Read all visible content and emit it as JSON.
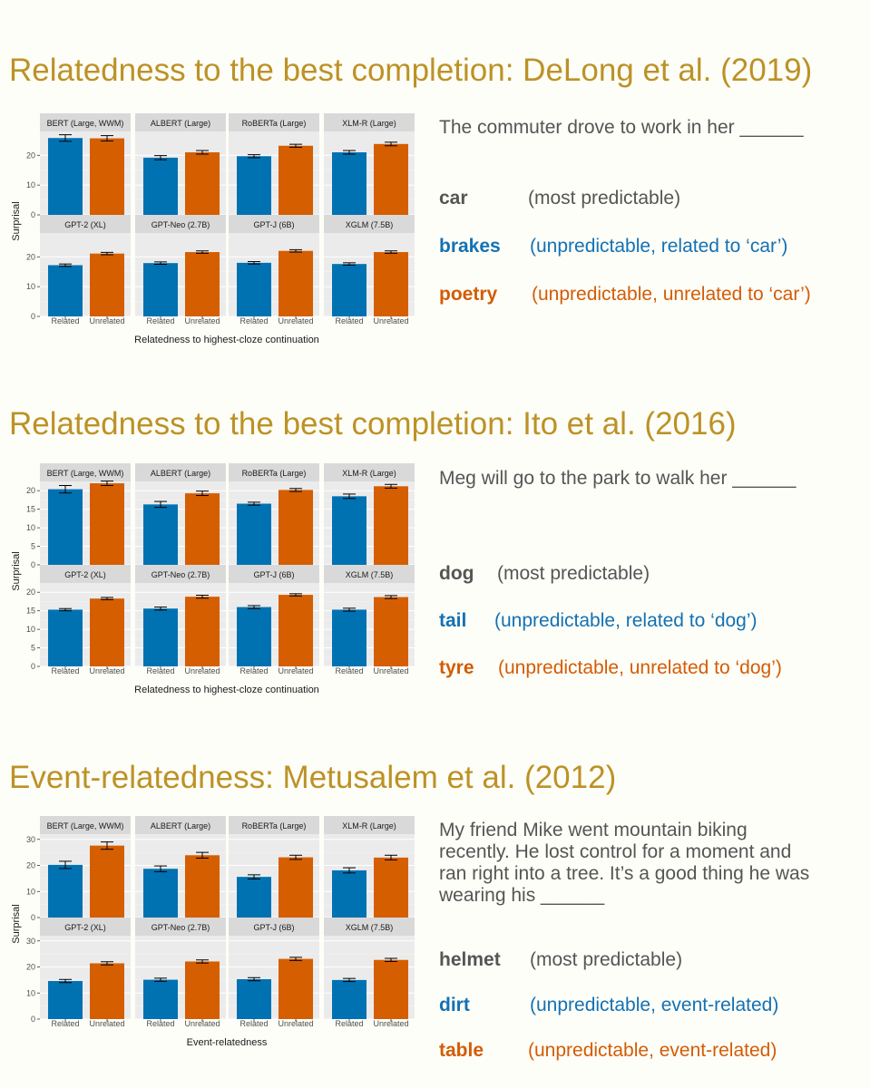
{
  "colors": {
    "related": "#0072b2",
    "unrelated": "#d55e00",
    "title": "#bc9226",
    "panel_bg": "#ebebeb",
    "strip_bg": "#d9d9d9",
    "text_gray": "#555555",
    "blue_text": "#1371b4",
    "orange_text": "#d35c05"
  },
  "sections": [
    {
      "title": "Relatedness to the best completion: DeLong et al. (2019)",
      "prompt": "The commuter drove to work in her ______",
      "candidates": [
        {
          "word": "car",
          "desc": "(most predictable)",
          "color": "gray"
        },
        {
          "word": "brakes",
          "desc": "(unpredictable, related to ‘car’)",
          "color": "blue"
        },
        {
          "word": "poetry",
          "desc": "(unpredictable, unrelated to ‘car’)",
          "color": "orange"
        }
      ]
    },
    {
      "title": "Relatedness to the best completion: Ito et al. (2016)",
      "prompt": "Meg will go to the park to walk her ______",
      "candidates": [
        {
          "word": "dog",
          "desc": "(most predictable)",
          "color": "gray"
        },
        {
          "word": "tail",
          "desc": "(unpredictable, related to ‘dog’)",
          "color": "blue"
        },
        {
          "word": "tyre",
          "desc": "(unpredictable, unrelated to ‘dog’)",
          "color": "orange"
        }
      ]
    },
    {
      "title": "Event-relatedness: Metusalem et al. (2012)",
      "prompt": "My friend Mike went mountain biking recently. He lost control for a moment and ran right into a tree. It’s a good thing he was wearing his ______",
      "candidates": [
        {
          "word": "helmet",
          "desc": "(most predictable)",
          "color": "gray"
        },
        {
          "word": "dirt",
          "desc": "(unpredictable, event-related)",
          "color": "blue"
        },
        {
          "word": "table",
          "desc": "(unpredictable, event-related)",
          "color": "orange"
        }
      ]
    }
  ],
  "chart_data": [
    {
      "type": "bar",
      "xlabel": "Relatedness to highest-cloze continuation",
      "ylabel": "Surprisal",
      "categories": [
        "Related",
        "Unrelated"
      ],
      "ylim": [
        0,
        28
      ],
      "yticks": [
        0,
        10,
        20
      ],
      "facets": [
        {
          "name": "BERT (Large, WWM)",
          "values": [
            25.8,
            25.7
          ],
          "err": [
            1.1,
            0.9
          ]
        },
        {
          "name": "ALBERT (Large)",
          "values": [
            19.2,
            21.0
          ],
          "err": [
            0.7,
            0.6
          ]
        },
        {
          "name": "RoBERTa (Large)",
          "values": [
            19.7,
            23.2
          ],
          "err": [
            0.5,
            0.5
          ]
        },
        {
          "name": "XLM-R (Large)",
          "values": [
            21.0,
            23.8
          ],
          "err": [
            0.6,
            0.6
          ]
        },
        {
          "name": "GPT-2 (XL)",
          "values": [
            17.2,
            21.1
          ],
          "err": [
            0.4,
            0.4
          ]
        },
        {
          "name": "GPT-Neo (2.7B)",
          "values": [
            17.9,
            21.6
          ],
          "err": [
            0.4,
            0.4
          ]
        },
        {
          "name": "GPT-J (6B)",
          "values": [
            18.0,
            22.0
          ],
          "err": [
            0.4,
            0.4
          ]
        },
        {
          "name": "XGLM (7.5B)",
          "values": [
            17.6,
            21.6
          ],
          "err": [
            0.4,
            0.4
          ]
        }
      ]
    },
    {
      "type": "bar",
      "xlabel": "Relatedness to highest-cloze continuation",
      "ylabel": "Surprisal",
      "categories": [
        "Related",
        "Unrelated"
      ],
      "ylim": [
        0,
        22.5
      ],
      "yticks": [
        0,
        5,
        10,
        15,
        20
      ],
      "facets": [
        {
          "name": "BERT (Large, WWM)",
          "values": [
            20.4,
            22.0
          ],
          "err": [
            1.0,
            0.6
          ]
        },
        {
          "name": "ALBERT (Large)",
          "values": [
            16.3,
            19.3
          ],
          "err": [
            0.8,
            0.6
          ]
        },
        {
          "name": "RoBERTa (Large)",
          "values": [
            16.5,
            20.2
          ],
          "err": [
            0.4,
            0.4
          ]
        },
        {
          "name": "XLM-R (Large)",
          "values": [
            18.5,
            21.2
          ],
          "err": [
            0.6,
            0.5
          ]
        },
        {
          "name": "GPT-2 (XL)",
          "values": [
            15.3,
            18.3
          ],
          "err": [
            0.3,
            0.3
          ]
        },
        {
          "name": "GPT-Neo (2.7B)",
          "values": [
            15.6,
            18.8
          ],
          "err": [
            0.4,
            0.4
          ]
        },
        {
          "name": "GPT-J (6B)",
          "values": [
            16.0,
            19.3
          ],
          "err": [
            0.4,
            0.3
          ]
        },
        {
          "name": "XGLM (7.5B)",
          "values": [
            15.3,
            18.7
          ],
          "err": [
            0.4,
            0.4
          ]
        }
      ]
    },
    {
      "type": "bar",
      "xlabel": "Event-relatedness",
      "ylabel": "Surprisal",
      "categories": [
        "Related",
        "Unrelated"
      ],
      "ylim": [
        0,
        32
      ],
      "yticks": [
        0,
        10,
        20,
        30
      ],
      "facets": [
        {
          "name": "BERT (Large, WWM)",
          "values": [
            20.2,
            27.6
          ],
          "err": [
            1.4,
            1.4
          ]
        },
        {
          "name": "ALBERT (Large)",
          "values": [
            18.7,
            23.9
          ],
          "err": [
            1.1,
            1.1
          ]
        },
        {
          "name": "RoBERTa (Large)",
          "values": [
            15.6,
            23.1
          ],
          "err": [
            0.8,
            0.8
          ]
        },
        {
          "name": "XLM-R (Large)",
          "values": [
            18.1,
            23.0
          ],
          "err": [
            1.0,
            0.9
          ]
        },
        {
          "name": "GPT-2 (XL)",
          "values": [
            14.6,
            21.4
          ],
          "err": [
            0.6,
            0.6
          ]
        },
        {
          "name": "GPT-Neo (2.7B)",
          "values": [
            15.1,
            22.1
          ],
          "err": [
            0.6,
            0.6
          ]
        },
        {
          "name": "GPT-J (6B)",
          "values": [
            15.3,
            23.1
          ],
          "err": [
            0.6,
            0.6
          ]
        },
        {
          "name": "XGLM (7.5B)",
          "values": [
            15.0,
            22.7
          ],
          "err": [
            0.6,
            0.6
          ]
        }
      ]
    }
  ]
}
